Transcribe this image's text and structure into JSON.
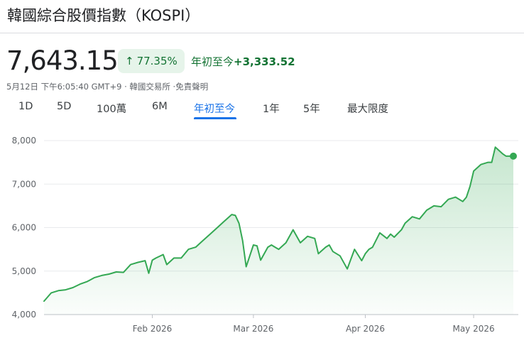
{
  "header": {
    "title": "韓國綜合股價指數（KOSPI）"
  },
  "quote": {
    "price": "7,643.15",
    "percent_change": "77.35%",
    "change_label": "年初至今",
    "change_value": "+3,333.52",
    "date": "5月12日",
    "time": "下午6:05:40 GMT+9",
    "exchange": "韓國交易所",
    "disclaimer": "·免責聲明"
  },
  "tabs": [
    {
      "label": "1D"
    },
    {
      "label": "5D"
    },
    {
      "label": "100萬"
    },
    {
      "label": "6M"
    },
    {
      "label": "年初至今",
      "active": true
    },
    {
      "label": "1年"
    },
    {
      "label": "5年"
    },
    {
      "label": "最大限度"
    }
  ],
  "colors": {
    "line": "#34a853",
    "badge_bg": "#e6f4ea",
    "positive": "#137333",
    "accent": "#1a73e8"
  },
  "chart_data": {
    "type": "area",
    "title": "",
    "xlabel": "",
    "ylabel": "",
    "ylim": [
      4000,
      8000
    ],
    "xlim": [
      "2026-01-02",
      "2026-05-12"
    ],
    "y_ticks": [
      "8,000",
      "7,000",
      "6,000",
      "5,000",
      "4,000"
    ],
    "y_tick_values": [
      8000,
      7000,
      6000,
      5000,
      4000
    ],
    "x_ticks": [
      "Feb 2026",
      "Mar 2026",
      "Apr 2026",
      "May 2026"
    ],
    "x_tick_dates": [
      "2026-02-01",
      "2026-03-01",
      "2026-04-01",
      "2026-05-01"
    ],
    "grid": true,
    "legend": "none",
    "series": [
      {
        "x": [
          "2026-01-02",
          "2026-01-04",
          "2026-01-06",
          "2026-01-08",
          "2026-01-10",
          "2026-01-12",
          "2026-01-14",
          "2026-01-16",
          "2026-01-18",
          "2026-01-20",
          "2026-01-22",
          "2026-01-24",
          "2026-01-26",
          "2026-01-28",
          "2026-01-30",
          "2026-01-31",
          "2026-02-01",
          "2026-02-02",
          "2026-02-04",
          "2026-02-05",
          "2026-02-07",
          "2026-02-09",
          "2026-02-11",
          "2026-02-13",
          "2026-02-15",
          "2026-02-17",
          "2026-02-19",
          "2026-02-21",
          "2026-02-23",
          "2026-02-24",
          "2026-02-25",
          "2026-02-26",
          "2026-02-27",
          "2026-03-01",
          "2026-03-02",
          "2026-03-03",
          "2026-03-05",
          "2026-03-06",
          "2026-03-07",
          "2026-03-08",
          "2026-03-10",
          "2026-03-12",
          "2026-03-14",
          "2026-03-16",
          "2026-03-18",
          "2026-03-19",
          "2026-03-21",
          "2026-03-22",
          "2026-03-23",
          "2026-03-25",
          "2026-03-27",
          "2026-03-29",
          "2026-03-31",
          "2026-04-01",
          "2026-04-02",
          "2026-04-03",
          "2026-04-05",
          "2026-04-07",
          "2026-04-08",
          "2026-04-09",
          "2026-04-11",
          "2026-04-12",
          "2026-04-14",
          "2026-04-16",
          "2026-04-18",
          "2026-04-20",
          "2026-04-22",
          "2026-04-24",
          "2026-04-26",
          "2026-04-28",
          "2026-04-29",
          "2026-04-30",
          "2026-05-01",
          "2026-05-03",
          "2026-05-05",
          "2026-05-06",
          "2026-05-07",
          "2026-05-09",
          "2026-05-10",
          "2026-05-12"
        ],
        "values": [
          4309,
          4500,
          4550,
          4570,
          4620,
          4700,
          4760,
          4850,
          4900,
          4930,
          4980,
          4970,
          5150,
          5200,
          5240,
          4950,
          5250,
          5300,
          5380,
          5150,
          5300,
          5300,
          5500,
          5550,
          5700,
          5850,
          6000,
          6150,
          6300,
          6280,
          6100,
          5700,
          5100,
          5600,
          5580,
          5250,
          5550,
          5600,
          5550,
          5500,
          5650,
          5950,
          5650,
          5800,
          5750,
          5400,
          5550,
          5600,
          5450,
          5350,
          5050,
          5500,
          5240,
          5400,
          5500,
          5550,
          5880,
          5750,
          5850,
          5780,
          5950,
          6100,
          6250,
          6200,
          6400,
          6500,
          6480,
          6650,
          6700,
          6600,
          6700,
          6950,
          7300,
          7450,
          7500,
          7500,
          7850,
          7700,
          7643,
          7643
        ]
      }
    ]
  }
}
